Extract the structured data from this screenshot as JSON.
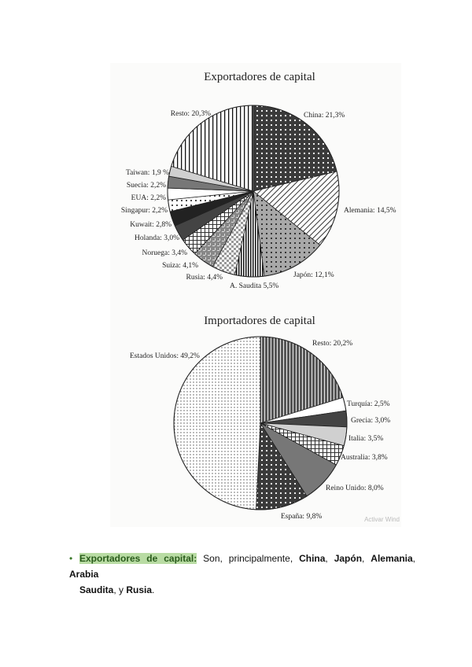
{
  "chart_data": [
    {
      "type": "pie",
      "title": "Exportadores de capital",
      "start": "top",
      "direction": "clockwise",
      "slices": [
        {
          "label": "China: 21,3%",
          "value": 21.3,
          "pattern": "dark-white-dots"
        },
        {
          "label": "Alemania: 14,5%",
          "value": 14.5,
          "pattern": "diagonal-lines"
        },
        {
          "label": "Japón: 12,1%",
          "value": 12.1,
          "pattern": "gray-black-dots"
        },
        {
          "label": "A. Saudita 5,5%",
          "value": 5.5,
          "pattern": "vertical-lines-dense"
        },
        {
          "label": "Rusia: 4,4%",
          "value": 4.4,
          "pattern": "checker"
        },
        {
          "label": "Suiza: 4,1%",
          "value": 4.1,
          "pattern": "gray-weave"
        },
        {
          "label": "Noruega: 3,4%",
          "value": 3.4,
          "pattern": "grid"
        },
        {
          "label": "Holanda: 3,0%",
          "value": 3.0,
          "pattern": "dark-gray"
        },
        {
          "label": "Kuwait: 2,8%",
          "value": 2.8,
          "pattern": "black"
        },
        {
          "label": "Singapur: 2,2%",
          "value": 2.2,
          "pattern": "white-black-dots"
        },
        {
          "label": "EUA: 2,2%",
          "value": 2.2,
          "pattern": "white"
        },
        {
          "label": "Suecia: 2,2%",
          "value": 2.2,
          "pattern": "mid-gray"
        },
        {
          "label": "Taiwan: 1,9 %",
          "value": 1.9,
          "pattern": "light-gray"
        },
        {
          "label": "Resto: 20,3%",
          "value": 20.3,
          "pattern": "vertical-lines"
        }
      ]
    },
    {
      "type": "pie",
      "title": "Importadores de capital",
      "start": "top",
      "direction": "clockwise",
      "slices": [
        {
          "label": "Resto: 20,2%",
          "value": 20.2,
          "pattern": "dark-vertical-lines"
        },
        {
          "label": "Turquía: 2,5%",
          "value": 2.5,
          "pattern": "white"
        },
        {
          "label": "Grecia: 3,0%",
          "value": 3.0,
          "pattern": "dark-gray"
        },
        {
          "label": "Italia: 3,5%",
          "value": 3.5,
          "pattern": "light-gray"
        },
        {
          "label": "Australia: 3,8%",
          "value": 3.8,
          "pattern": "grid"
        },
        {
          "label": "Reino Unido: 8,0%",
          "value": 8.0,
          "pattern": "mid-gray"
        },
        {
          "label": "España: 9,8%",
          "value": 9.8,
          "pattern": "dark-white-dots"
        },
        {
          "label": "Estados Unidos: 49,2%",
          "value": 49.2,
          "pattern": "white-fine-dots"
        }
      ]
    }
  ],
  "watermark": "Activar Wind",
  "paragraph": {
    "bullet": "•",
    "heading": "Exportadores de capital:",
    "text1": " Son, principalmente, ",
    "b1": "China",
    "s1": ", ",
    "b2": "Japón",
    "s2": ", ",
    "b3": "Alemania",
    "s3": ", ",
    "b4": "Arabia",
    "b5": "Saudita",
    "s4": ", y ",
    "b6": "Rusia",
    "s5": ".",
    "highlight_color": "#b9dca4"
  }
}
